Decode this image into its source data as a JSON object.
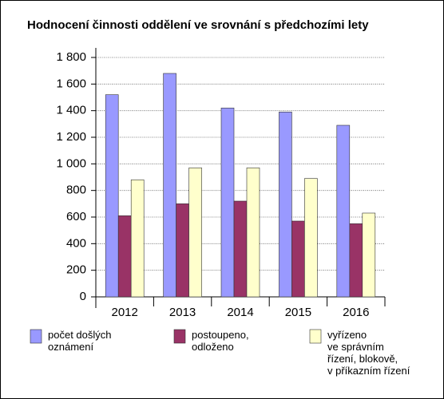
{
  "chart_data": {
    "type": "bar",
    "title": "Hodnocení činnosti oddělení ve srovnání s předchozími lety",
    "categories": [
      "2012",
      "2013",
      "2014",
      "2015",
      "2016"
    ],
    "series": [
      {
        "name": "počet došlých\noznámení",
        "color": "#9999ff",
        "values": [
          1520,
          1680,
          1420,
          1390,
          1290
        ]
      },
      {
        "name": "postoupeno,\nodloženo",
        "color": "#993366",
        "values": [
          610,
          700,
          720,
          570,
          550
        ]
      },
      {
        "name": "vyřízeno\nve správním\nřízení, blokově,\nv příkazním řízení",
        "color": "#ffffcc",
        "values": [
          880,
          970,
          970,
          890,
          630
        ]
      }
    ],
    "ylim": [
      0,
      1800
    ],
    "yticks": [
      0,
      200,
      400,
      600,
      800,
      {
        "value": 1000,
        "label": "1 000"
      },
      {
        "value": 1200,
        "label": "1 200"
      },
      {
        "value": 1400,
        "label": "1 400"
      },
      {
        "value": 1600,
        "label": "1 600"
      },
      {
        "value": 1800,
        "label": "1 800"
      }
    ],
    "grid": true
  }
}
